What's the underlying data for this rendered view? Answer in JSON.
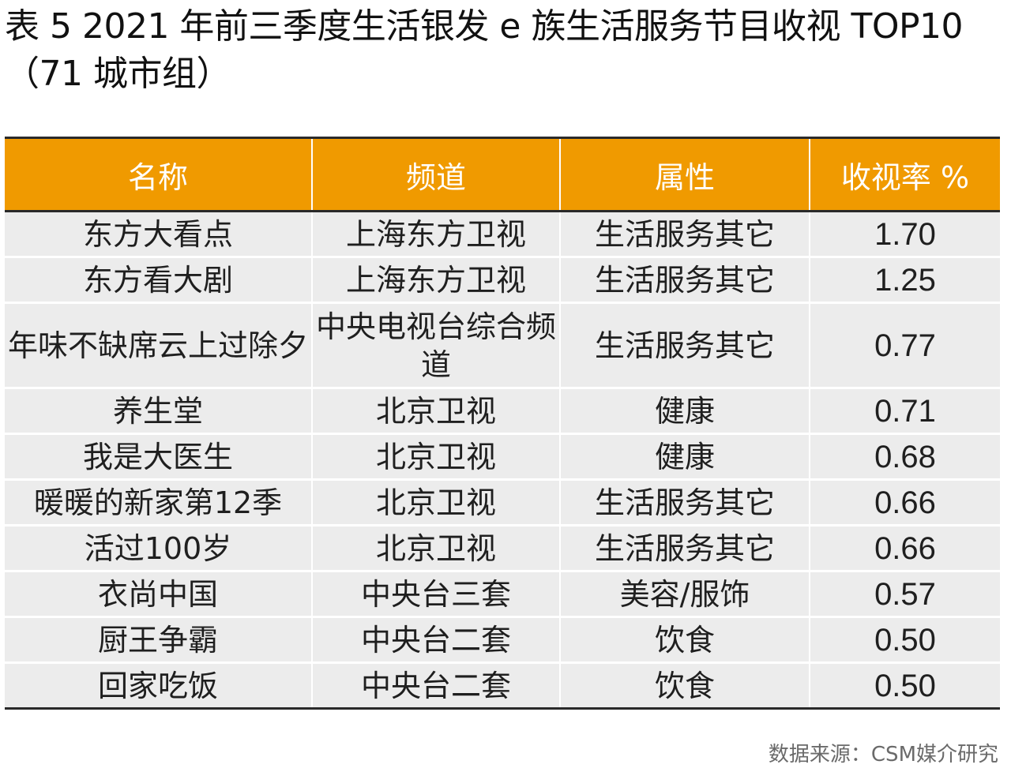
{
  "title": "表 5  2021 年前三季度生活银发 e 族生活服务节目收视 TOP10（71 城市组）",
  "table": {
    "headers": [
      "名称",
      "频道",
      "属性",
      "收视率 %"
    ],
    "rows": [
      [
        "东方大看点",
        "上海东方卫视",
        "生活服务其它",
        "1.70"
      ],
      [
        "东方看大剧",
        "上海东方卫视",
        "生活服务其它",
        "1.25"
      ],
      [
        "年味不缺席云上过除夕",
        "中央电视台综合频道",
        "生活服务其它",
        "0.77"
      ],
      [
        "养生堂",
        "北京卫视",
        "健康",
        "0.71"
      ],
      [
        "我是大医生",
        "北京卫视",
        "健康",
        "0.68"
      ],
      [
        "暖暖的新家第12季",
        "北京卫视",
        "生活服务其它",
        "0.66"
      ],
      [
        "活过100岁",
        "北京卫视",
        "生活服务其它",
        "0.66"
      ],
      [
        "衣尚中国",
        "中央台三套",
        "美容/服饰",
        "0.57"
      ],
      [
        "厨王争霸",
        "中央台二套",
        "饮食",
        "0.50"
      ],
      [
        "回家吃饭",
        "中央台二套",
        "饮食",
        "0.50"
      ]
    ]
  },
  "source": "数据来源：CSM媒介研究",
  "colors": {
    "header_bg": "#f09a00",
    "row_bg": "#ececec"
  }
}
